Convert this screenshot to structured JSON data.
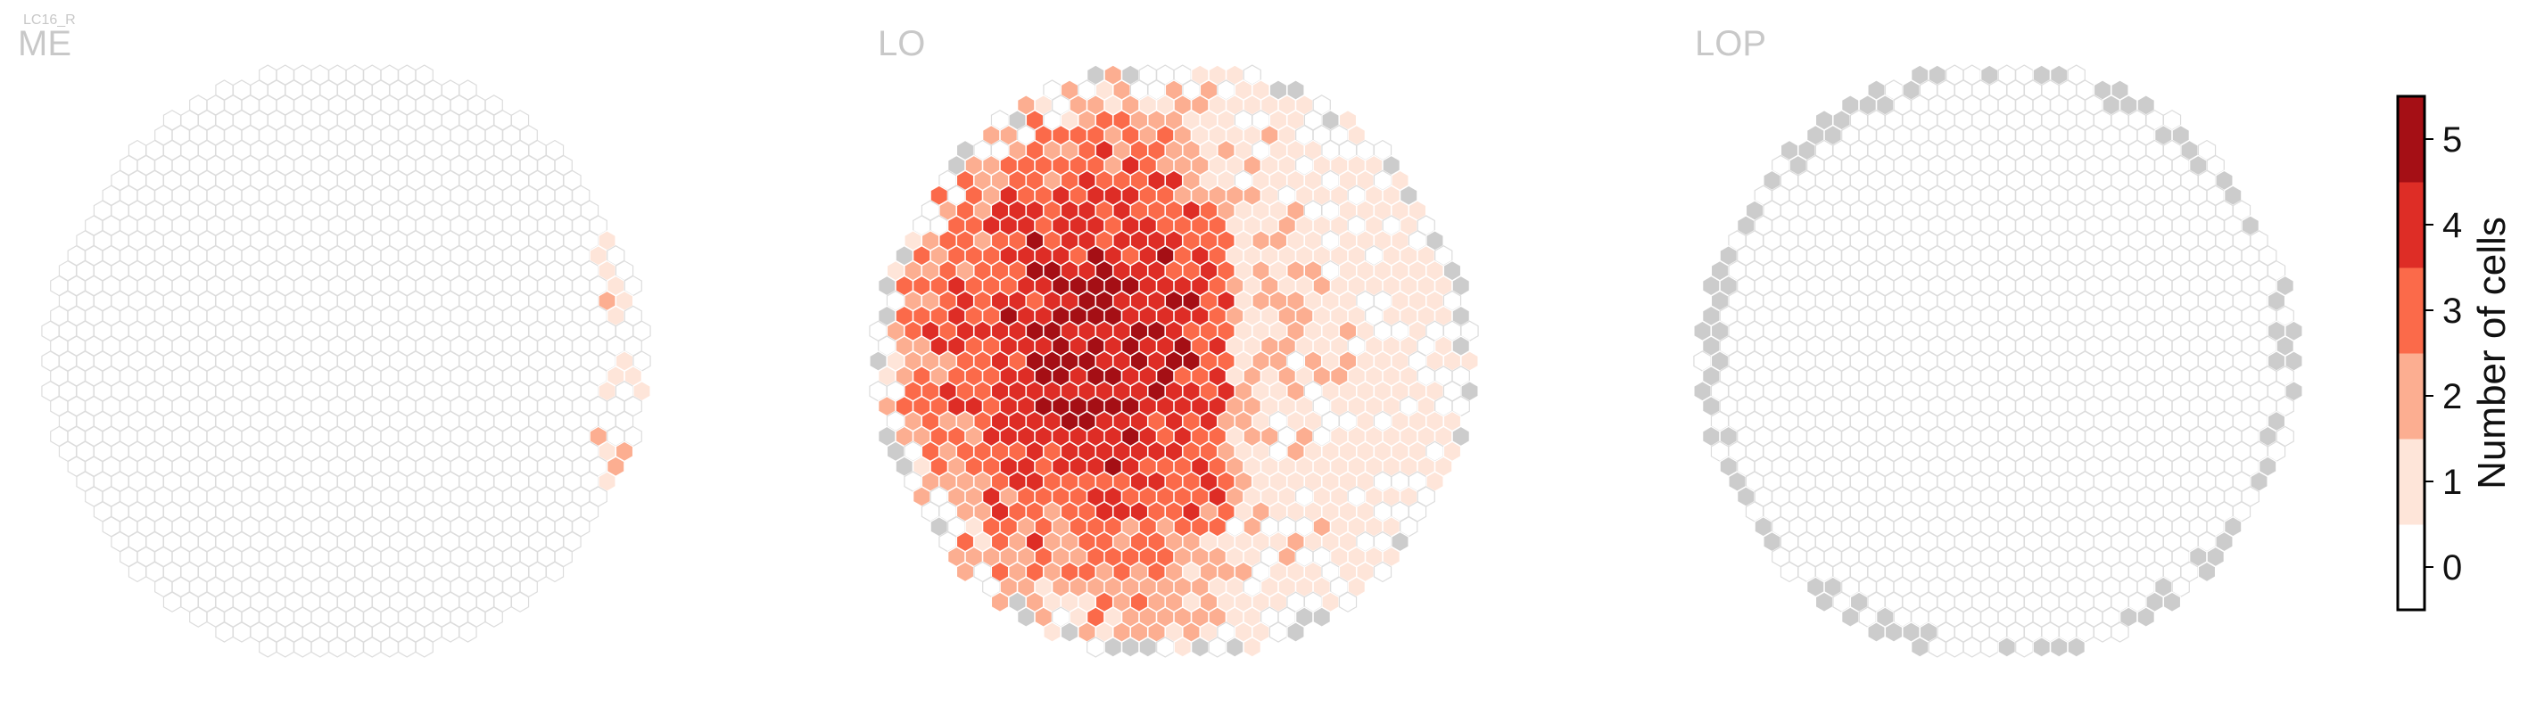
{
  "figure": {
    "cell_type_label": "LC16_R",
    "panels": [
      "ME",
      "LO",
      "LOP"
    ]
  },
  "colorbar": {
    "label": "Number of cells",
    "ticks": [
      "0",
      "1",
      "2",
      "3",
      "4",
      "5"
    ],
    "colors": [
      "#ffffff",
      "#fee5d9",
      "#fcae91",
      "#fb6a4a",
      "#de2d26",
      "#a50f15"
    ]
  },
  "chart_data": [
    {
      "type": "heatmap",
      "title": "ME",
      "grid": "hexagonal",
      "fill_fraction": 0.0,
      "highlight_count_min": 1,
      "highlight_count_max": 2,
      "seed": 11
    },
    {
      "type": "heatmap",
      "title": "LO",
      "grid": "hexagonal",
      "fill_fraction": 0.85,
      "value_range": [
        0,
        5
      ],
      "seed": 7
    },
    {
      "type": "heatmap",
      "title": "LOP",
      "grid": "hexagonal",
      "fill_fraction": 0.0,
      "boundary_color": "#cccccc",
      "seed": 3
    }
  ],
  "colors": {
    "empty_fill": "#ffffff",
    "empty_stroke": "#dcdcdc",
    "boundary_fill": "#cccccc",
    "filled_stroke": "#ffffff"
  }
}
